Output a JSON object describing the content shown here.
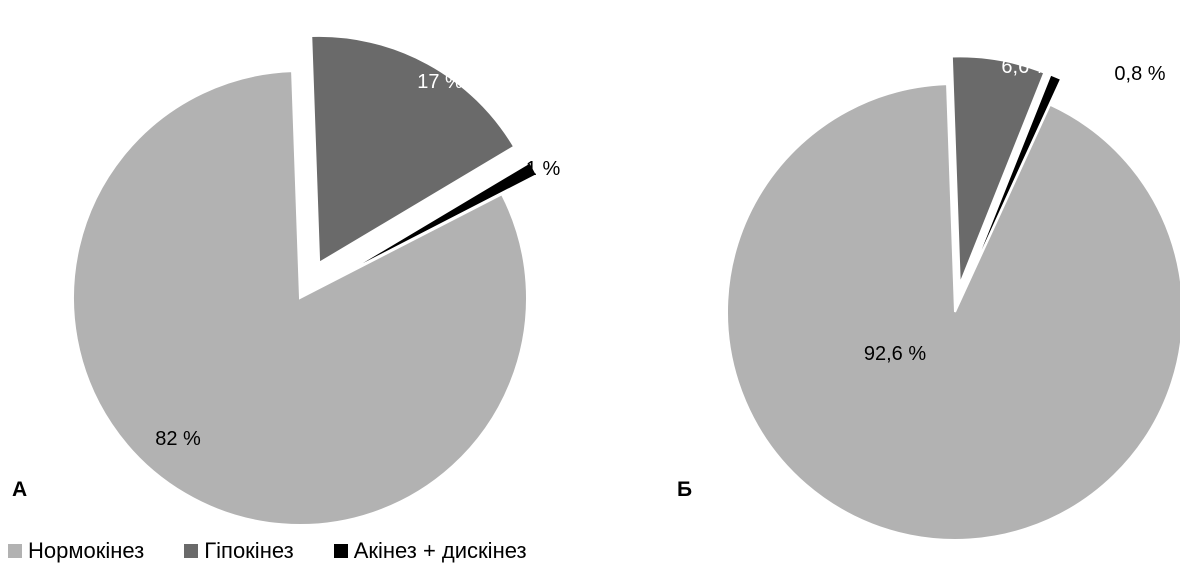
{
  "colors": {
    "normokinesis": "#b2b2b2",
    "hypokinesis": "#6a6a6a",
    "akinesis": "#000000"
  },
  "legend": [
    {
      "label": "Нормокінез",
      "color": "#b2b2b2"
    },
    {
      "label": "Гіпокінез",
      "color": "#6a6a6a"
    },
    {
      "label": "Акінез + дискінез",
      "color": "#000000"
    }
  ],
  "chart_data": [
    {
      "type": "pie",
      "panel_label": "А",
      "slices": [
        {
          "name": "Нормокінез",
          "value": 82,
          "label": "82 %",
          "color": "#b2b2b2",
          "exploded": false
        },
        {
          "name": "Гіпокінез",
          "value": 17,
          "label": "17 %",
          "color": "#6a6a6a",
          "exploded": true
        },
        {
          "name": "Акінез + дискінез",
          "value": 1,
          "label": "1 %",
          "color": "#000000",
          "exploded": true
        }
      ]
    },
    {
      "type": "pie",
      "panel_label": "Б",
      "slices": [
        {
          "name": "Нормокінез",
          "value": 92.6,
          "label": "92,6 %",
          "color": "#b2b2b2",
          "exploded": false
        },
        {
          "name": "Гіпокінез",
          "value": 6.6,
          "label": "6,6 %",
          "color": "#6a6a6a",
          "exploded": true
        },
        {
          "name": "Акінез + дискінез",
          "value": 0.8,
          "label": "0,8 %",
          "color": "#000000",
          "exploded": true
        }
      ]
    }
  ]
}
